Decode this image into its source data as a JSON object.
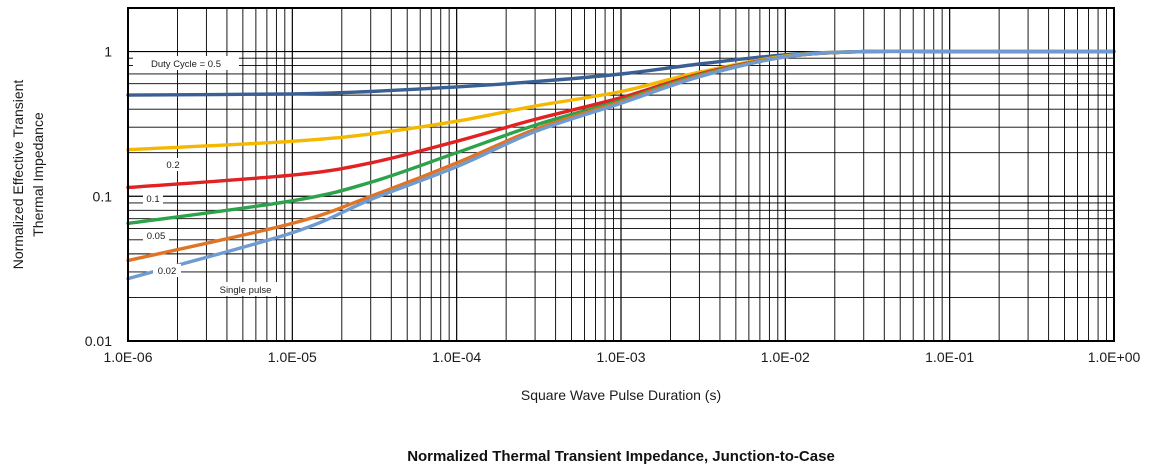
{
  "chart_data": {
    "type": "line",
    "title": "Normalized Thermal Transient Impedance, Junction-to-Case",
    "xlabel": "Square Wave Pulse Duration (s)",
    "ylabel": [
      "Normalized Effective Transient",
      "Thermal Impedance"
    ],
    "x_scale": "log",
    "y_scale": "log",
    "xlim": [
      1e-06,
      1
    ],
    "ylim": [
      0.01,
      2
    ],
    "x_tick_labels": [
      "1.0E-06",
      "1.0E-05",
      "1.0E-04",
      "1.0E-03",
      "1.0E-02",
      "1.0E-01",
      "1.0E+00"
    ],
    "x_tick_values": [
      1e-06,
      1e-05,
      0.0001,
      0.001,
      0.01,
      0.1,
      1
    ],
    "y_tick_labels": [
      "0.01",
      "0.1",
      "1"
    ],
    "y_tick_values": [
      0.01,
      0.1,
      1
    ],
    "grid": true,
    "series": [
      {
        "name": "Duty Cycle = 0.5",
        "color": "#3a5f94",
        "x": [
          1e-06,
          1e-05,
          3e-05,
          0.0001,
          0.0003,
          0.001,
          0.003,
          0.01,
          0.03,
          0.1,
          1
        ],
        "y": [
          0.5,
          0.51,
          0.53,
          0.57,
          0.62,
          0.7,
          0.82,
          0.95,
          1.0,
          1.0,
          1.0
        ]
      },
      {
        "name": "0.2",
        "color": "#f5b800",
        "x": [
          1e-06,
          1e-05,
          3e-05,
          0.0001,
          0.0003,
          0.001,
          0.003,
          0.01,
          0.03,
          0.1,
          1
        ],
        "y": [
          0.21,
          0.24,
          0.27,
          0.33,
          0.42,
          0.53,
          0.72,
          0.93,
          1.0,
          1.0,
          1.0
        ]
      },
      {
        "name": "0.1",
        "color": "#e22222",
        "x": [
          1e-06,
          1e-05,
          3e-05,
          0.0001,
          0.0003,
          0.001,
          0.003,
          0.01,
          0.03,
          0.1,
          1
        ],
        "y": [
          0.115,
          0.14,
          0.17,
          0.24,
          0.34,
          0.48,
          0.7,
          0.92,
          1.0,
          1.0,
          1.0
        ]
      },
      {
        "name": "0.05",
        "color": "#2ca24a",
        "x": [
          1e-06,
          1e-05,
          3e-05,
          0.0001,
          0.0003,
          0.001,
          0.003,
          0.01,
          0.03,
          0.1,
          1
        ],
        "y": [
          0.065,
          0.093,
          0.125,
          0.2,
          0.31,
          0.46,
          0.69,
          0.92,
          1.0,
          1.0,
          1.0
        ]
      },
      {
        "name": "0.02",
        "color": "#e07426",
        "x": [
          1e-06,
          1e-05,
          3e-05,
          0.0001,
          0.0003,
          0.001,
          0.003,
          0.01,
          0.03,
          0.1,
          1
        ],
        "y": [
          0.036,
          0.065,
          0.1,
          0.17,
          0.29,
          0.45,
          0.68,
          0.92,
          1.0,
          1.0,
          1.0
        ]
      },
      {
        "name": "Single pulse",
        "color": "#6f9bd1",
        "x": [
          1e-06,
          1e-05,
          3e-05,
          0.0001,
          0.0003,
          0.001,
          0.003,
          0.01,
          0.03,
          0.1,
          1
        ],
        "y": [
          0.027,
          0.056,
          0.095,
          0.16,
          0.28,
          0.44,
          0.67,
          0.92,
          1.0,
          1.0,
          1.0
        ]
      }
    ],
    "annotations": [
      "Duty Cycle = 0.5",
      "0.2",
      "0.1",
      "0.05",
      "0.02",
      "Single pulse"
    ]
  }
}
